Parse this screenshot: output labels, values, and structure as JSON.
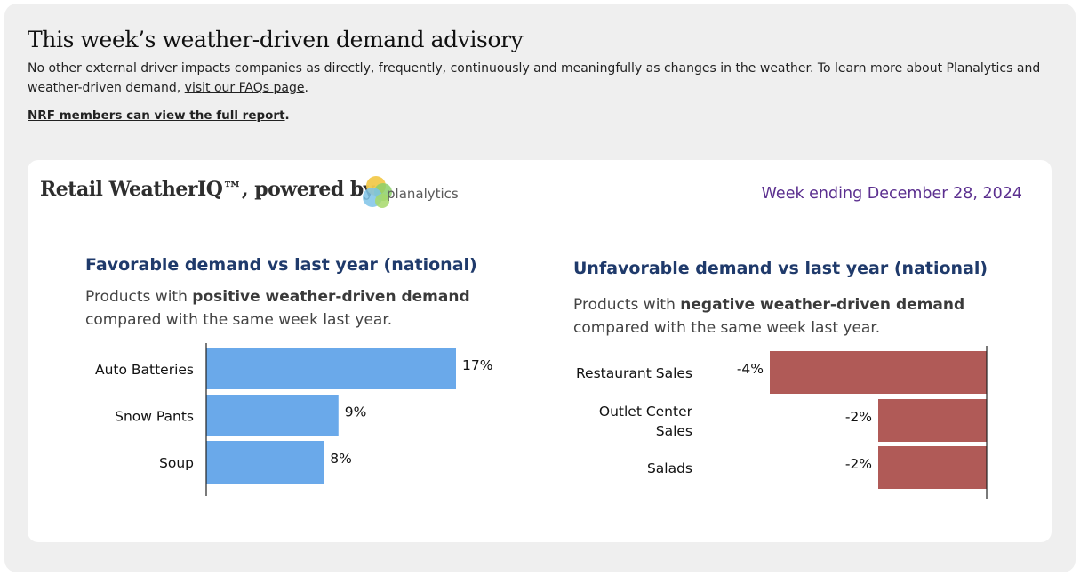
{
  "header": {
    "title": "This week’s weather-driven demand advisory",
    "intro_text": "No other external driver impacts companies as directly, frequently, continuously and meaningfully as changes in the weather. To learn more about Planalytics and weather-driven demand, ",
    "faq_link": "visit our FAQs page",
    "intro_end": ".",
    "members_link": "NRF members can view the full report",
    "members_end": "."
  },
  "card": {
    "brand": "Retail WeatherIQ™, powered by",
    "logo_text": "planalytics",
    "week_label": "Week ending December 28, 2024"
  },
  "favorable": {
    "title": "Favorable demand vs last year (national)",
    "sub_prefix": "Products with ",
    "sub_bold": "positive weather-driven demand",
    "sub_line2": "compared with the same week last year."
  },
  "unfavorable": {
    "title": "Unfavorable demand vs last year (national)",
    "sub_prefix": "Products with ",
    "sub_bold": "negative weather-driven demand",
    "sub_line2": "compared with the same week last year."
  },
  "colors": {
    "positive": "#6aa9ea",
    "negative": "#b05a57",
    "title": "#1f3a6b",
    "week": "#5b2f8f"
  },
  "chart_data": [
    {
      "type": "bar",
      "orientation": "horizontal",
      "title": "Favorable demand vs last year (national)",
      "categories": [
        "Auto Batteries",
        "Snow Pants",
        "Soup"
      ],
      "values": [
        17,
        9,
        8
      ],
      "labels": [
        "17%",
        "9%",
        "8%"
      ],
      "unit": "%",
      "xlim": [
        0,
        20
      ],
      "grid": false,
      "legend": "none"
    },
    {
      "type": "bar",
      "orientation": "horizontal",
      "title": "Unfavorable demand vs last year (national)",
      "categories": [
        [
          "Restaurant Sales"
        ],
        [
          "Outlet Center",
          "Sales"
        ],
        [
          "Salads"
        ]
      ],
      "values": [
        -4,
        -2,
        -2
      ],
      "labels": [
        "-4%",
        "-2%",
        "-2%"
      ],
      "unit": "%",
      "xlim": [
        -5,
        0
      ],
      "grid": false,
      "legend": "none"
    }
  ]
}
